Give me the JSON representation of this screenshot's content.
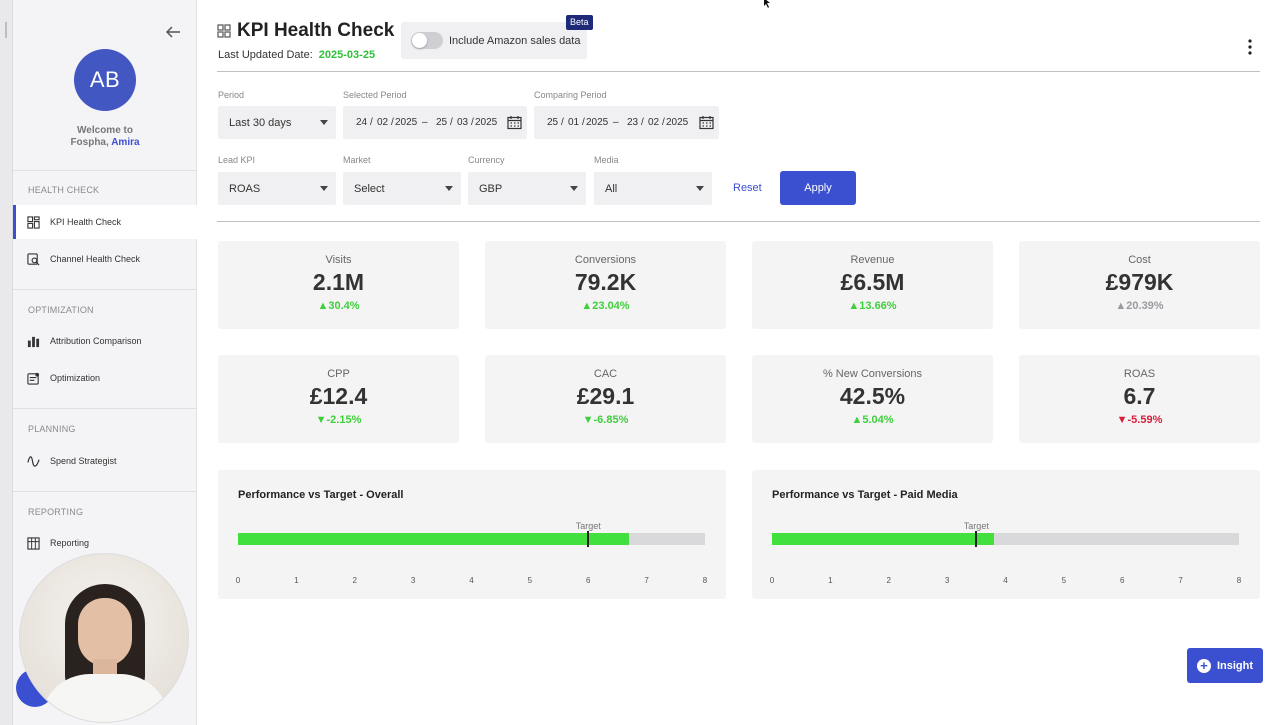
{
  "sidebar": {
    "avatar_initials": "AB",
    "welcome_line1": "Welcome to",
    "welcome_line2": "Fospha,",
    "user_name": "Amira",
    "sections": [
      {
        "title": "HEALTH CHECK",
        "items": [
          {
            "label": "KPI Health Check",
            "icon": "kpi-grid-icon",
            "active": true
          },
          {
            "label": "Channel Health Check",
            "icon": "channel-search-icon",
            "active": false
          }
        ]
      },
      {
        "title": "OPTIMIZATION",
        "items": [
          {
            "label": "Attribution Comparison",
            "icon": "bar-chart-icon",
            "active": false
          },
          {
            "label": "Optimization",
            "icon": "optimization-icon",
            "active": false
          }
        ]
      },
      {
        "title": "PLANNING",
        "items": [
          {
            "label": "Spend Strategist",
            "icon": "wave-icon",
            "active": false
          }
        ]
      },
      {
        "title": "REPORTING",
        "items": [
          {
            "label": "Reporting",
            "icon": "table-icon",
            "active": false
          }
        ]
      }
    ]
  },
  "header": {
    "title": "KPI Health Check",
    "last_updated_label": "Last Updated Date:",
    "last_updated_value": "2025-03-25",
    "amazon_toggle_label": "Include Amazon sales data",
    "amazon_toggle_on": false,
    "beta_badge": "Beta"
  },
  "filters": {
    "period": {
      "label": "Period",
      "value": "Last 30 days"
    },
    "selected_period": {
      "label": "Selected Period",
      "start_day": "24",
      "start_month": "02",
      "start_year": "2025",
      "end_day": "25",
      "end_month": "03",
      "end_year": "2025"
    },
    "comparing_period": {
      "label": "Comparing Period",
      "start_day": "25",
      "start_month": "01",
      "start_year": "2025",
      "end_day": "23",
      "end_month": "02",
      "end_year": "2025"
    },
    "date_sep": "/",
    "range_sep": "–",
    "lead_kpi": {
      "label": "Lead KPI",
      "value": "ROAS"
    },
    "market": {
      "label": "Market",
      "value": "Select"
    },
    "currency": {
      "label": "Currency",
      "value": "GBP"
    },
    "media": {
      "label": "Media",
      "value": "All"
    },
    "reset_label": "Reset",
    "apply_label": "Apply"
  },
  "kpis": [
    {
      "label": "Visits",
      "value": "2.1M",
      "delta": "▲30.4%",
      "trend": "up"
    },
    {
      "label": "Conversions",
      "value": "79.2K",
      "delta": "▲23.04%",
      "trend": "up"
    },
    {
      "label": "Revenue",
      "value": "£6.5M",
      "delta": "▲13.66%",
      "trend": "up"
    },
    {
      "label": "Cost",
      "value": "£979K",
      "delta": "▲20.39%",
      "trend": "neutral"
    },
    {
      "label": "CPP",
      "value": "£12.4",
      "delta": "▼-2.15%",
      "trend": "down-good"
    },
    {
      "label": "CAC",
      "value": "£29.1",
      "delta": "▼-6.85%",
      "trend": "down-good"
    },
    {
      "label": "% New Conversions",
      "value": "42.5%",
      "delta": "▲5.04%",
      "trend": "up"
    },
    {
      "label": "ROAS",
      "value": "6.7",
      "delta": "▼-5.59%",
      "trend": "down-bad"
    }
  ],
  "performance": [
    {
      "title": "Performance vs Target - Overall",
      "target_label": "Target",
      "value": 6.7,
      "target": 6.0,
      "scale_max": 8,
      "ticks": [
        "0",
        "1",
        "2",
        "3",
        "4",
        "5",
        "6",
        "7",
        "8"
      ]
    },
    {
      "title": "Performance vs Target - Paid Media",
      "target_label": "Target",
      "value": 3.8,
      "target": 3.5,
      "scale_max": 8,
      "ticks": [
        "0",
        "1",
        "2",
        "3",
        "4",
        "5",
        "6",
        "7",
        "8"
      ]
    }
  ],
  "insight_label": "Insight",
  "colors": {
    "accent": "#3b4fd1",
    "positive": "#3fcf3a",
    "negative": "#d61f3a",
    "bar_fill": "#42e03e"
  }
}
